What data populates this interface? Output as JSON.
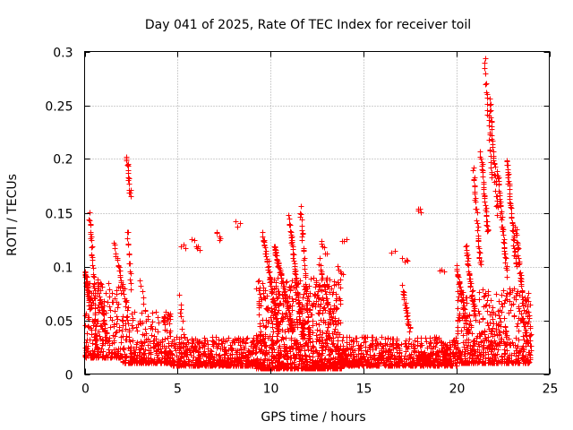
{
  "chart_data": {
    "type": "scatter",
    "title": "Day 041 of 2025, Rate Of TEC Index for receiver toil",
    "xlabel": "GPS time / hours",
    "ylabel": "ROTI / TECUs",
    "xlim": [
      0,
      25
    ],
    "ylim": [
      0,
      0.3
    ],
    "x_ticks": [
      0,
      5,
      10,
      15,
      20,
      25
    ],
    "x_tick_labels": [
      "0",
      "5",
      "10",
      "15",
      "20",
      "25"
    ],
    "y_ticks": [
      0,
      0.05,
      0.1,
      0.15,
      0.2,
      0.25,
      0.3
    ],
    "y_tick_labels": [
      "0",
      "0.05",
      "0.1",
      "0.15",
      "0.2",
      "0.25",
      "0.3"
    ],
    "grid": true,
    "marker": "plus",
    "color": "#ff0000",
    "seed": 41,
    "series": [
      {
        "name": "ROTI",
        "background_segments": [
          {
            "x": [
              0.0,
              2.0
            ],
            "y": [
              0.015,
              0.085
            ],
            "n": 230
          },
          {
            "x": [
              2.0,
              4.6
            ],
            "y": [
              0.01,
              0.06
            ],
            "n": 300
          },
          {
            "x": [
              4.6,
              9.2
            ],
            "y": [
              0.008,
              0.035
            ],
            "n": 520
          },
          {
            "x": [
              9.2,
              13.8
            ],
            "y": [
              0.005,
              0.09
            ],
            "n": 900
          },
          {
            "x": [
              13.8,
              20.0
            ],
            "y": [
              0.008,
              0.035
            ],
            "n": 680
          },
          {
            "x": [
              20.0,
              24.0
            ],
            "y": [
              0.01,
              0.08
            ],
            "n": 520
          }
        ],
        "tracks": [
          {
            "x": [
              0.0,
              0.35
            ],
            "y": [
              0.095,
              0.06
            ],
            "n": 40
          },
          {
            "x": [
              0.25,
              0.6
            ],
            "y": [
              0.152,
              0.05
            ],
            "n": 35
          },
          {
            "x": [
              0.7,
              1.2
            ],
            "y": [
              0.085,
              0.03
            ],
            "n": 30
          },
          {
            "x": [
              1.6,
              2.3
            ],
            "y": [
              0.12,
              0.06
            ],
            "n": 30
          },
          {
            "x": [
              2.25,
              2.45
            ],
            "y": [
              0.202,
              0.165
            ],
            "n": 18
          },
          {
            "x": [
              2.3,
              2.5
            ],
            "y": [
              0.135,
              0.08
            ],
            "n": 14
          },
          {
            "x": [
              3.0,
              3.2
            ],
            "y": [
              0.09,
              0.06
            ],
            "n": 6
          },
          {
            "x": [
              5.1,
              5.3
            ],
            "y": [
              0.072,
              0.04
            ],
            "n": 8
          },
          {
            "x": [
              5.2,
              5.4
            ],
            "y": [
              0.12,
              0.118
            ],
            "n": 3
          },
          {
            "x": [
              5.8,
              6.2
            ],
            "y": [
              0.123,
              0.118
            ],
            "n": 6
          },
          {
            "x": [
              7.1,
              7.3
            ],
            "y": [
              0.132,
              0.126
            ],
            "n": 5
          },
          {
            "x": [
              8.1,
              8.3
            ],
            "y": [
              0.14,
              0.138
            ],
            "n": 3
          },
          {
            "x": [
              9.6,
              10.4
            ],
            "y": [
              0.13,
              0.04
            ],
            "n": 60
          },
          {
            "x": [
              10.2,
              11.2
            ],
            "y": [
              0.12,
              0.04
            ],
            "n": 90
          },
          {
            "x": [
              11.0,
              11.6
            ],
            "y": [
              0.145,
              0.05
            ],
            "n": 50
          },
          {
            "x": [
              11.6,
              12.1
            ],
            "y": [
              0.155,
              0.03
            ],
            "n": 40
          },
          {
            "x": [
              12.7,
              13.0
            ],
            "y": [
              0.125,
              0.11
            ],
            "n": 6
          },
          {
            "x": [
              12.6,
              13.3
            ],
            "y": [
              0.105,
              0.05
            ],
            "n": 25
          },
          {
            "x": [
              13.6,
              13.9
            ],
            "y": [
              0.1,
              0.095
            ],
            "n": 5
          },
          {
            "x": [
              13.9,
              14.1
            ],
            "y": [
              0.125,
              0.123
            ],
            "n": 3
          },
          {
            "x": [
              16.5,
              16.7
            ],
            "y": [
              0.113,
              0.112
            ],
            "n": 2
          },
          {
            "x": [
              17.1,
              17.4
            ],
            "y": [
              0.108,
              0.104
            ],
            "n": 4
          },
          {
            "x": [
              17.1,
              17.5
            ],
            "y": [
              0.08,
              0.04
            ],
            "n": 25
          },
          {
            "x": [
              17.9,
              18.1
            ],
            "y": [
              0.155,
              0.152
            ],
            "n": 4
          },
          {
            "x": [
              19.1,
              19.3
            ],
            "y": [
              0.097,
              0.093
            ],
            "n": 3
          },
          {
            "x": [
              20.0,
              20.6
            ],
            "y": [
              0.1,
              0.04
            ],
            "n": 40
          },
          {
            "x": [
              20.5,
              21.0
            ],
            "y": [
              0.12,
              0.05
            ],
            "n": 40
          },
          {
            "x": [
              20.9,
              21.3
            ],
            "y": [
              0.19,
              0.1
            ],
            "n": 35
          },
          {
            "x": [
              21.3,
              21.7
            ],
            "y": [
              0.205,
              0.13
            ],
            "n": 35
          },
          {
            "x": [
              21.5,
              21.9
            ],
            "y": [
              0.3,
              0.18
            ],
            "n": 28
          },
          {
            "x": [
              21.8,
              22.2
            ],
            "y": [
              0.255,
              0.15
            ],
            "n": 35
          },
          {
            "x": [
              22.2,
              22.7
            ],
            "y": [
              0.19,
              0.09
            ],
            "n": 45
          },
          {
            "x": [
              22.7,
              23.2
            ],
            "y": [
              0.2,
              0.1
            ],
            "n": 45
          },
          {
            "x": [
              23.2,
              23.6
            ],
            "y": [
              0.135,
              0.06
            ],
            "n": 35
          },
          {
            "x": [
              23.5,
              23.8
            ],
            "y": [
              0.055,
              0.03
            ],
            "n": 15
          }
        ]
      }
    ]
  }
}
